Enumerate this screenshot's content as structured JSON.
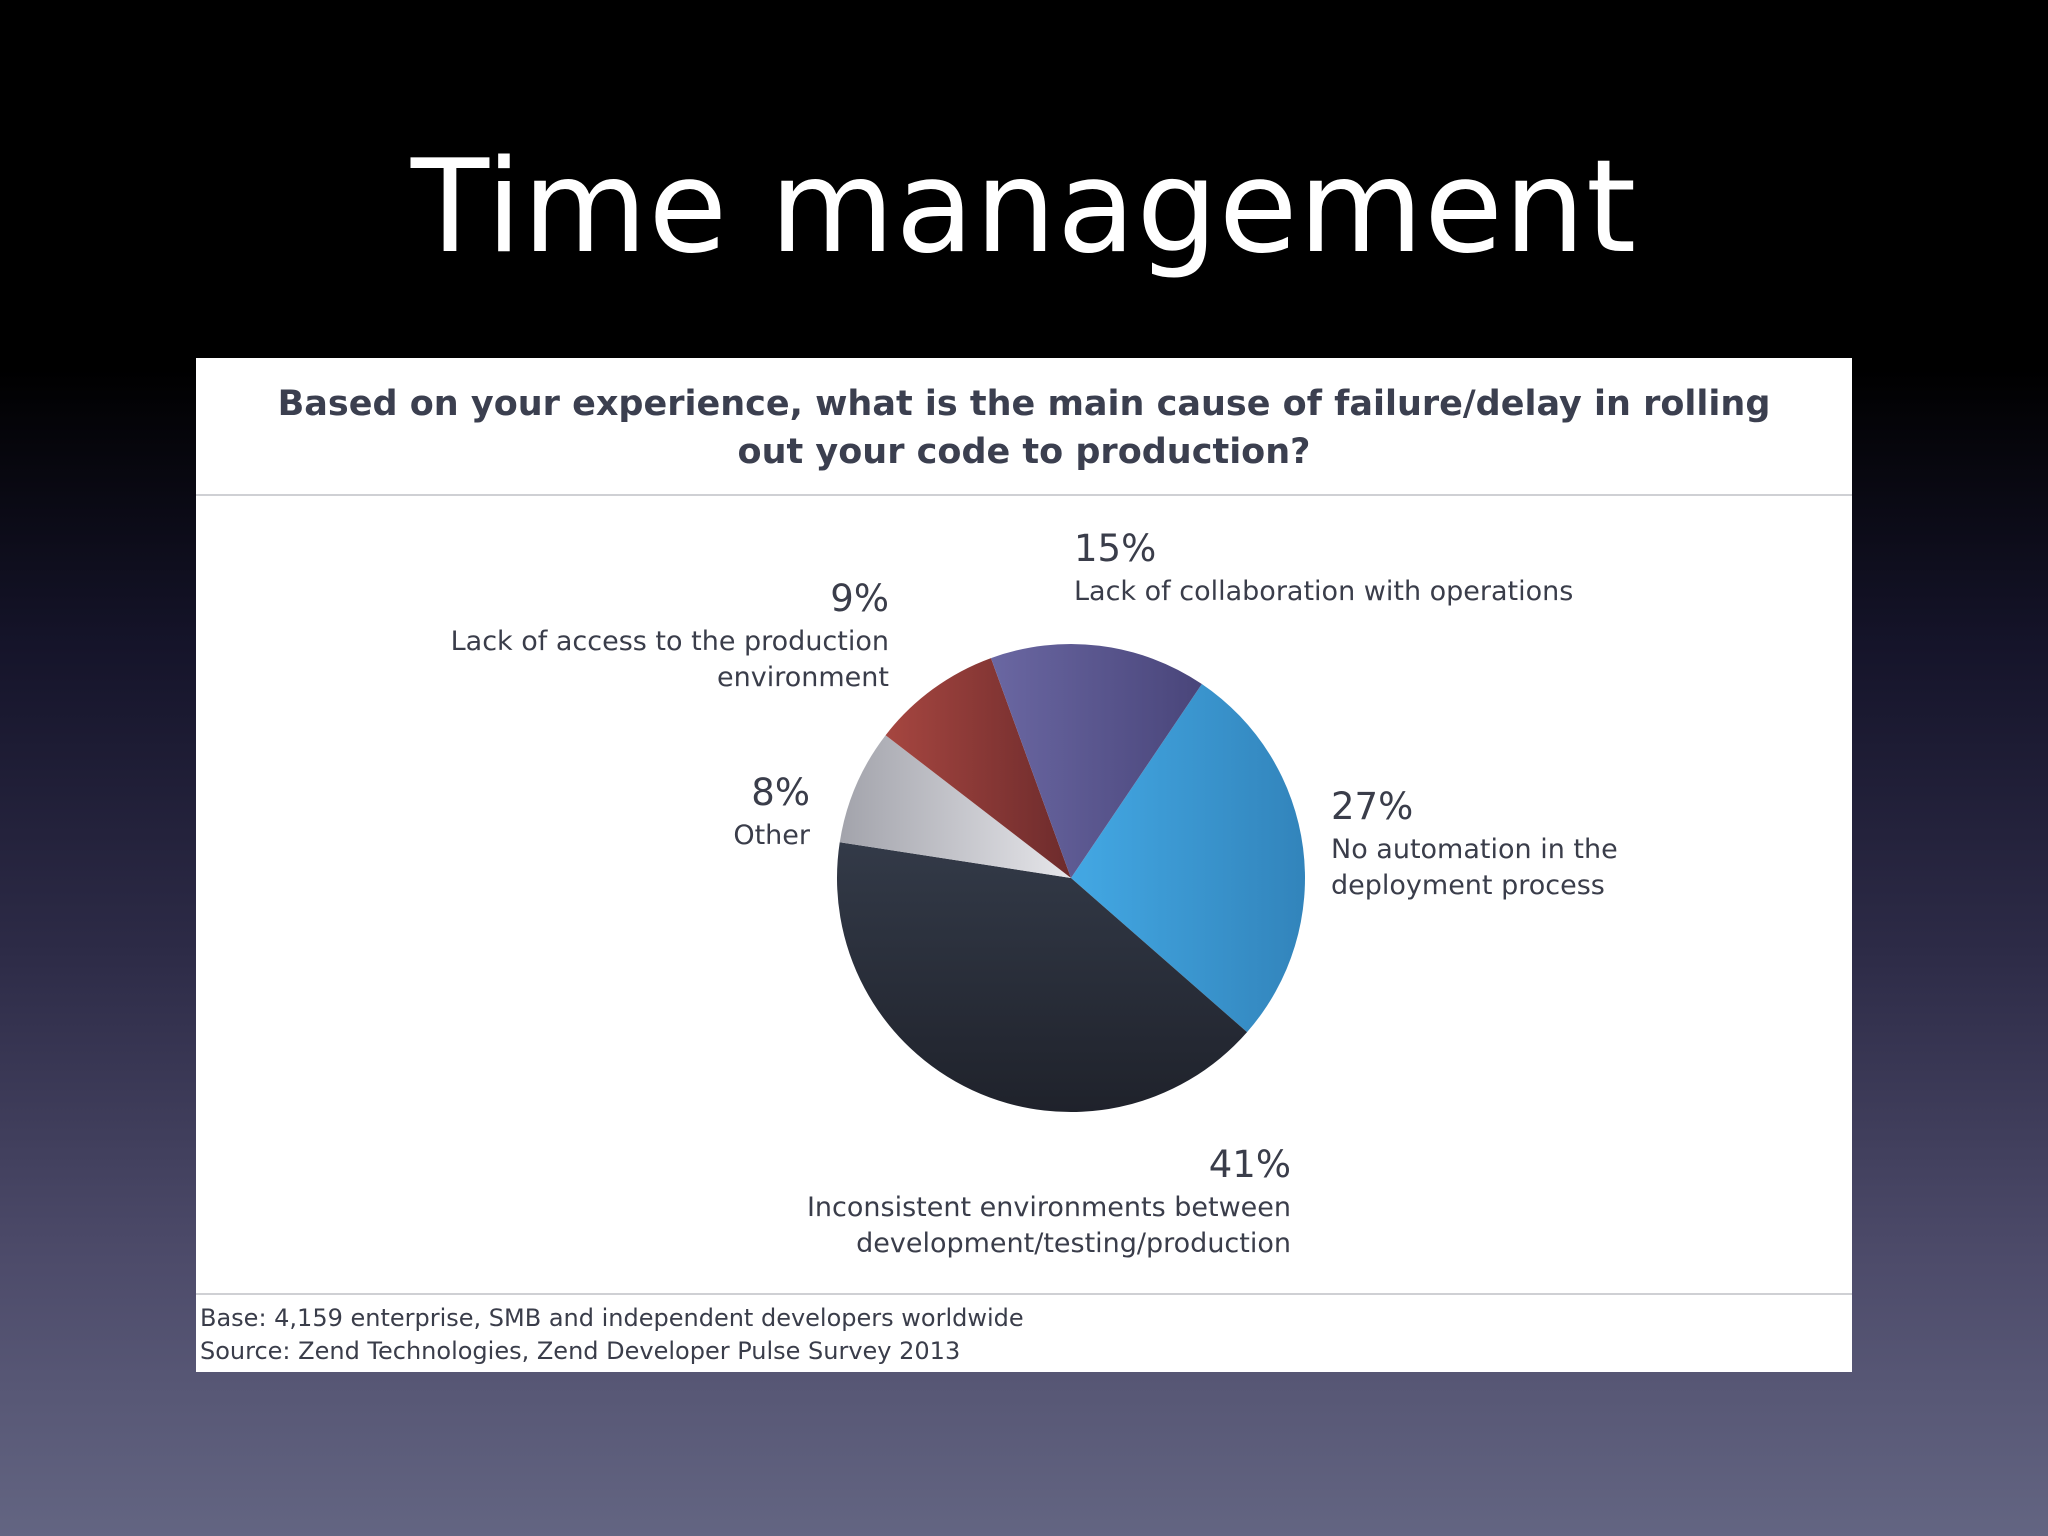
{
  "slide": {
    "title": "Time management"
  },
  "chart_data": {
    "type": "pie",
    "title_lines": [
      "Based on your experience, what is the main cause of failure/delay in rolling",
      "out your code to production?"
    ],
    "slices": [
      {
        "label": "No automation in the deployment process",
        "label_lines": [
          "No automation in the",
          "deployment process"
        ],
        "value": 27,
        "value_label": "27%",
        "color": "#3a9fd9"
      },
      {
        "label": "Inconsistent environments between development/testing/production",
        "label_lines": [
          "Inconsistent environments between",
          "development/testing/production"
        ],
        "value": 41,
        "value_label": "41%",
        "color": "#2b2f3c"
      },
      {
        "label": "Other",
        "label_lines": [
          "Other"
        ],
        "value": 8,
        "value_label": "8%",
        "color": "#bdbdc3"
      },
      {
        "label": "Lack of access to the production environment",
        "label_lines": [
          "Lack of access to the production",
          "environment"
        ],
        "value": 9,
        "value_label": "9%",
        "color": "#913a38"
      },
      {
        "label": "Lack of collaboration with operations",
        "label_lines": [
          "Lack of collaboration with operations"
        ],
        "value": 15,
        "value_label": "15%",
        "color": "#5b5890"
      }
    ],
    "start_angle_deg": 34,
    "direction": "clockwise",
    "footnotes": [
      "Base: 4,159 enterprise, SMB and independent developers worldwide",
      "Source: Zend Technologies, Zend Developer Pulse Survey 2013"
    ]
  }
}
